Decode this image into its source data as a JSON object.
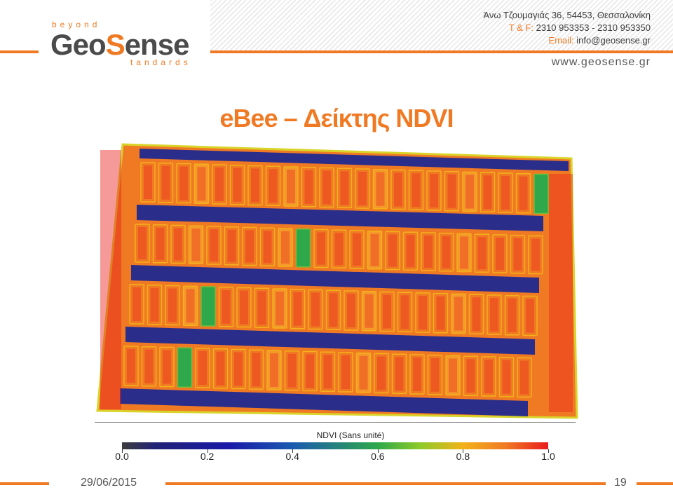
{
  "header": {
    "logo": {
      "top": "beyond",
      "main_left": "Geo",
      "main_right": "ense",
      "bottom": "tandards"
    },
    "contact": {
      "address": "Άνω Τζουμαγιάς 36, 54453, Θεσσαλονίκη",
      "phone_label": "T & F:",
      "phone": "2310 953353 - 2310 953350",
      "email_label": "Email:",
      "email": "info@geosense.gr"
    },
    "website": "www.geosense.gr"
  },
  "slide": {
    "title": "eBee – Δείκτης NDVI"
  },
  "legend": {
    "title": "NDVI (Sans unité)",
    "ticks": [
      "0.0",
      "0.2",
      "0.4",
      "0.6",
      "0.8",
      "1.0"
    ]
  },
  "footer": {
    "date": "29/06/2015",
    "page": "19"
  },
  "colors": {
    "accent": "#f07a23",
    "ndvi_high": "#f07a23",
    "ndvi_max": "#e81c1c",
    "ndvi_mid": "#2ea84a",
    "ndvi_low": "#2a2e8a"
  }
}
